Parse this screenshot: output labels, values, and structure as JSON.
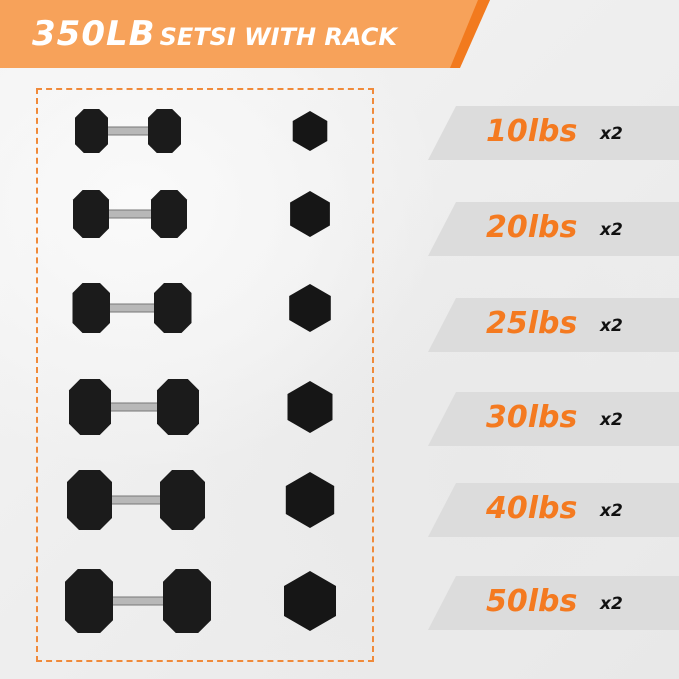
{
  "header": {
    "weight": "350LB",
    "subtitle": "SETSI WITH RACK"
  },
  "colors": {
    "accent": "#f47a20",
    "banner": "#f7a25a",
    "label_bg": "#dcdcdc"
  },
  "items": [
    {
      "weight": "10lbs",
      "qty": "x2"
    },
    {
      "weight": "20lbs",
      "qty": "x2"
    },
    {
      "weight": "25lbs",
      "qty": "x2"
    },
    {
      "weight": "30lbs",
      "qty": "x2"
    },
    {
      "weight": "40lbs",
      "qty": "x2"
    },
    {
      "weight": "50lbs",
      "qty": "x2"
    }
  ]
}
